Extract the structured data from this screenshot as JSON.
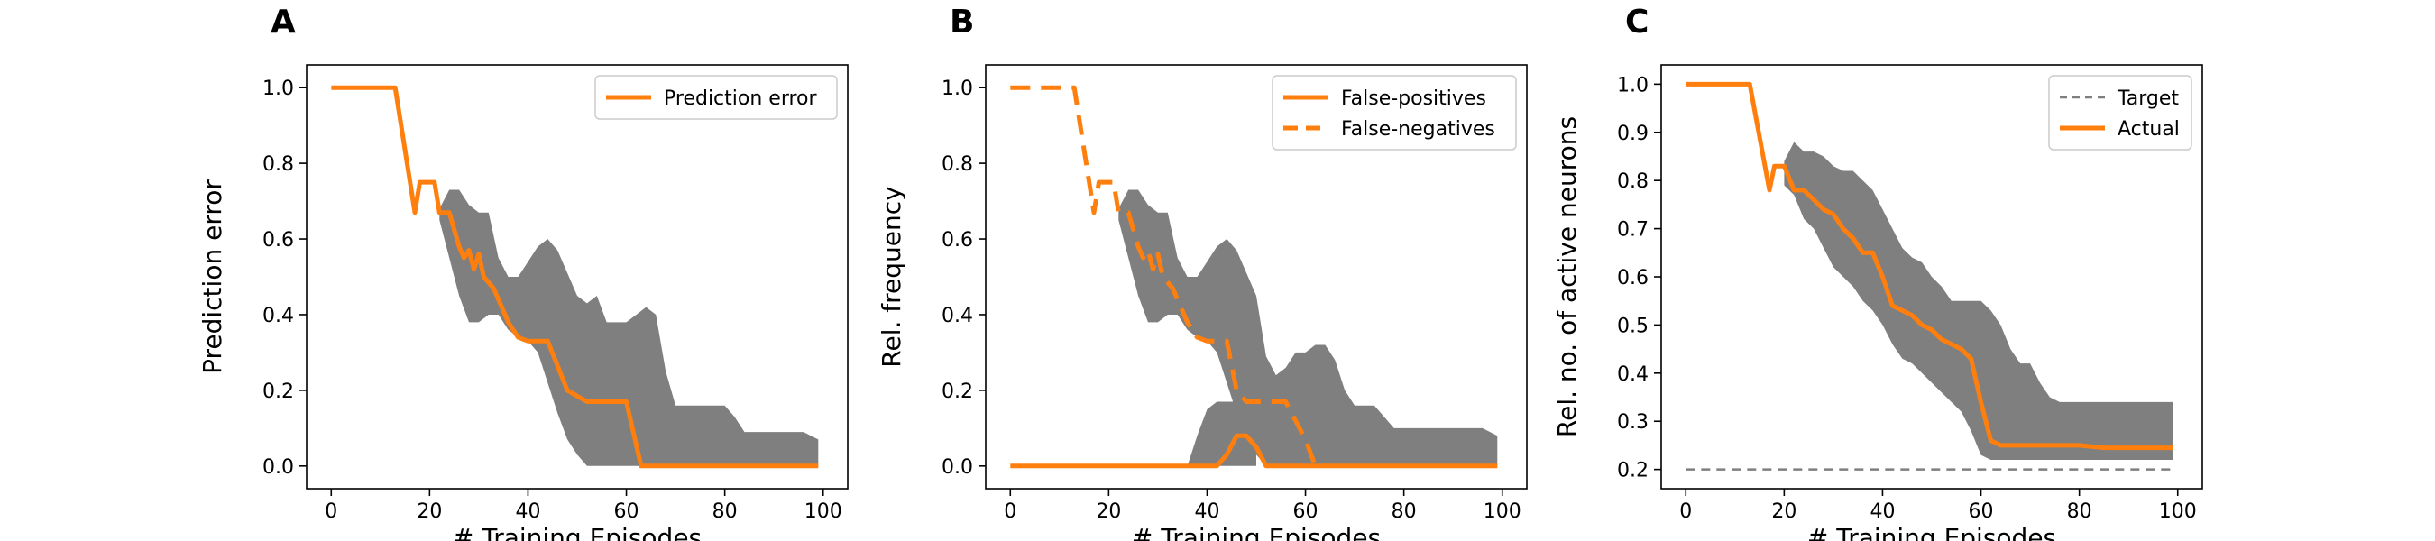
{
  "figure": {
    "panel_labels": [
      "A",
      "B",
      "C"
    ]
  },
  "chart_data": [
    {
      "type": "line",
      "panel": "A",
      "xlabel": "# Training Episodes",
      "ylabel": "Prediction error",
      "xlim": [
        -5,
        105
      ],
      "ylim": [
        -0.06,
        1.06
      ],
      "xticks": [
        0,
        20,
        40,
        60,
        80,
        100
      ],
      "xtick_labels": [
        "0",
        "20",
        "40",
        "60",
        "80",
        "100"
      ],
      "yticks": [
        0.0,
        0.2,
        0.4,
        0.6,
        0.8,
        1.0
      ],
      "ytick_labels": [
        "0.0",
        "0.2",
        "0.4",
        "0.6",
        "0.8",
        "1.0"
      ],
      "legend_position": "top-right",
      "series": [
        {
          "name": "Prediction error",
          "color": "#ff7f0e",
          "style": "solid",
          "x": [
            0,
            13,
            17,
            18,
            21,
            22,
            24,
            26,
            27,
            28,
            29,
            30,
            31,
            33,
            36,
            38,
            40,
            42,
            44,
            48,
            52,
            56,
            60,
            63,
            70,
            80,
            99
          ],
          "y": [
            1.0,
            1.0,
            0.67,
            0.75,
            0.75,
            0.67,
            0.67,
            0.58,
            0.55,
            0.57,
            0.52,
            0.56,
            0.5,
            0.47,
            0.38,
            0.34,
            0.33,
            0.33,
            0.33,
            0.2,
            0.17,
            0.17,
            0.17,
            0.0,
            0.0,
            0.0,
            0.0
          ]
        }
      ],
      "band": {
        "color": "#7f7f7f",
        "x": [
          22,
          24,
          26,
          28,
          30,
          32,
          34,
          36,
          38,
          40,
          42,
          44,
          46,
          48,
          50,
          52,
          54,
          56,
          58,
          60,
          62,
          64,
          66,
          68,
          70,
          72,
          74,
          76,
          78,
          80,
          82,
          84,
          86,
          88,
          90,
          92,
          94,
          96,
          99
        ],
        "upper": [
          0.68,
          0.73,
          0.73,
          0.69,
          0.67,
          0.67,
          0.55,
          0.5,
          0.5,
          0.54,
          0.58,
          0.6,
          0.57,
          0.51,
          0.45,
          0.43,
          0.45,
          0.38,
          0.38,
          0.38,
          0.4,
          0.42,
          0.4,
          0.25,
          0.16,
          0.16,
          0.16,
          0.16,
          0.16,
          0.16,
          0.13,
          0.09,
          0.09,
          0.09,
          0.09,
          0.09,
          0.09,
          0.09,
          0.07
        ],
        "lower": [
          0.65,
          0.55,
          0.45,
          0.38,
          0.38,
          0.4,
          0.4,
          0.36,
          0.34,
          0.33,
          0.3,
          0.22,
          0.14,
          0.07,
          0.03,
          0.0,
          0.0,
          0.0,
          0.0,
          0.0,
          0.0,
          0.0,
          0.0,
          0.0,
          0.0,
          0.0,
          0.0,
          0.0,
          0.0,
          0.0,
          0.0,
          0.0,
          0.0,
          0.0,
          0.0,
          0.0,
          0.0,
          0.0,
          0.0
        ]
      }
    },
    {
      "type": "line",
      "panel": "B",
      "xlabel": "# Training Episodes",
      "ylabel": "Rel. frequency",
      "xlim": [
        -5,
        105
      ],
      "ylim": [
        -0.06,
        1.06
      ],
      "xticks": [
        0,
        20,
        40,
        60,
        80,
        100
      ],
      "xtick_labels": [
        "0",
        "20",
        "40",
        "60",
        "80",
        "100"
      ],
      "yticks": [
        0.0,
        0.2,
        0.4,
        0.6,
        0.8,
        1.0
      ],
      "ytick_labels": [
        "0.0",
        "0.2",
        "0.4",
        "0.6",
        "0.8",
        "1.0"
      ],
      "legend_position": "top-right",
      "series": [
        {
          "name": "False-positives",
          "color": "#ff7f0e",
          "style": "solid",
          "x": [
            0,
            30,
            40,
            42,
            44,
            46,
            48,
            50,
            52,
            56,
            60,
            70,
            80,
            99
          ],
          "y": [
            0.0,
            0.0,
            0.0,
            0.0,
            0.03,
            0.08,
            0.08,
            0.05,
            0.0,
            0.0,
            0.0,
            0.0,
            0.0,
            0.0
          ]
        },
        {
          "name": "False-negatives",
          "color": "#ff7f0e",
          "style": "dashed",
          "x": [
            0,
            13,
            17,
            18,
            21,
            22,
            24,
            26,
            27,
            28,
            29,
            30,
            31,
            33,
            36,
            38,
            40,
            42,
            44,
            46,
            48,
            52,
            56,
            58,
            60,
            62
          ],
          "y": [
            1.0,
            1.0,
            0.67,
            0.75,
            0.75,
            0.67,
            0.67,
            0.58,
            0.55,
            0.57,
            0.52,
            0.56,
            0.5,
            0.47,
            0.38,
            0.34,
            0.33,
            0.33,
            0.33,
            0.2,
            0.17,
            0.17,
            0.17,
            0.12,
            0.07,
            0.0
          ]
        }
      ],
      "band": {
        "color": "#7f7f7f",
        "x": [
          22,
          24,
          26,
          28,
          30,
          32,
          34,
          36,
          38,
          40,
          42,
          44,
          46,
          48,
          50,
          52,
          54,
          56,
          58,
          60,
          62,
          64,
          66,
          68,
          70,
          72,
          74,
          76,
          78,
          80,
          82,
          84,
          86,
          88,
          90,
          92,
          94,
          96,
          99
        ],
        "upper": [
          0.68,
          0.73,
          0.73,
          0.69,
          0.67,
          0.67,
          0.55,
          0.5,
          0.5,
          0.54,
          0.58,
          0.6,
          0.57,
          0.51,
          0.45,
          0.29,
          0.24,
          0.26,
          0.3,
          0.3,
          0.32,
          0.32,
          0.28,
          0.2,
          0.16,
          0.16,
          0.16,
          0.13,
          0.1,
          0.1,
          0.1,
          0.1,
          0.1,
          0.1,
          0.1,
          0.1,
          0.1,
          0.1,
          0.08
        ],
        "lower": [
          0.65,
          0.55,
          0.45,
          0.38,
          0.38,
          0.4,
          0.4,
          0.36,
          0.34,
          0.33,
          0.3,
          0.22,
          0.14,
          0.07,
          0.03,
          0.0,
          0.0,
          0.0,
          0.0,
          0.0,
          0.0,
          0.0,
          0.0,
          0.0,
          0.0,
          0.0,
          0.0,
          0.0,
          0.0,
          0.0,
          0.0,
          0.0,
          0.0,
          0.0,
          0.0,
          0.0,
          0.0,
          0.0,
          0.0
        ]
      },
      "band2": {
        "color": "#7f7f7f",
        "x": [
          36,
          38,
          40,
          42,
          44,
          46,
          48,
          50
        ],
        "upper": [
          0.0,
          0.08,
          0.15,
          0.17,
          0.17,
          0.17,
          0.17,
          0.17
        ],
        "lower": [
          0.0,
          0.0,
          0.0,
          0.0,
          0.0,
          0.0,
          0.0,
          0.0
        ]
      }
    },
    {
      "type": "line",
      "panel": "C",
      "xlabel": "# Training Episodes",
      "ylabel": "Rel. no. of active neurons",
      "xlim": [
        -5,
        105
      ],
      "ylim": [
        0.16,
        1.04
      ],
      "xticks": [
        0,
        20,
        40,
        60,
        80,
        100
      ],
      "xtick_labels": [
        "0",
        "20",
        "40",
        "60",
        "80",
        "100"
      ],
      "yticks": [
        0.2,
        0.3,
        0.4,
        0.5,
        0.6,
        0.7,
        0.8,
        0.9,
        1.0
      ],
      "ytick_labels": [
        "0.2",
        "0.3",
        "0.4",
        "0.5",
        "0.6",
        "0.7",
        "0.8",
        "0.9",
        "1.0"
      ],
      "legend_position": "top-right",
      "series": [
        {
          "name": "Target",
          "color": "#7f7f7f",
          "style": "dashed",
          "x": [
            0,
            99
          ],
          "y": [
            0.2,
            0.2
          ]
        },
        {
          "name": "Actual",
          "color": "#ff7f0e",
          "style": "solid",
          "x": [
            0,
            13,
            17,
            18,
            20,
            22,
            24,
            26,
            28,
            30,
            32,
            34,
            36,
            38,
            40,
            42,
            44,
            46,
            48,
            50,
            52,
            54,
            56,
            58,
            60,
            62,
            64,
            66,
            70,
            75,
            80,
            85,
            90,
            95,
            99
          ],
          "y": [
            1.0,
            1.0,
            0.78,
            0.83,
            0.83,
            0.78,
            0.78,
            0.76,
            0.74,
            0.73,
            0.7,
            0.68,
            0.65,
            0.65,
            0.6,
            0.54,
            0.53,
            0.52,
            0.5,
            0.49,
            0.47,
            0.46,
            0.45,
            0.43,
            0.34,
            0.26,
            0.25,
            0.25,
            0.25,
            0.25,
            0.25,
            0.245,
            0.245,
            0.245,
            0.245
          ]
        }
      ],
      "band": {
        "color": "#7f7f7f",
        "x": [
          20,
          22,
          24,
          26,
          28,
          30,
          32,
          34,
          36,
          38,
          40,
          42,
          44,
          46,
          48,
          50,
          52,
          54,
          56,
          58,
          60,
          62,
          64,
          66,
          68,
          70,
          72,
          74,
          76,
          78,
          80,
          82,
          84,
          86,
          88,
          90,
          92,
          94,
          96,
          99
        ],
        "upper": [
          0.84,
          0.88,
          0.86,
          0.86,
          0.85,
          0.83,
          0.82,
          0.82,
          0.8,
          0.78,
          0.74,
          0.7,
          0.66,
          0.64,
          0.63,
          0.6,
          0.58,
          0.55,
          0.55,
          0.55,
          0.55,
          0.53,
          0.5,
          0.45,
          0.42,
          0.42,
          0.38,
          0.35,
          0.34,
          0.34,
          0.34,
          0.34,
          0.34,
          0.34,
          0.34,
          0.34,
          0.34,
          0.34,
          0.34,
          0.34
        ],
        "lower": [
          0.79,
          0.77,
          0.72,
          0.7,
          0.66,
          0.62,
          0.6,
          0.58,
          0.55,
          0.53,
          0.5,
          0.46,
          0.43,
          0.42,
          0.4,
          0.38,
          0.36,
          0.34,
          0.32,
          0.28,
          0.23,
          0.22,
          0.22,
          0.22,
          0.22,
          0.22,
          0.22,
          0.22,
          0.22,
          0.22,
          0.22,
          0.22,
          0.22,
          0.22,
          0.22,
          0.22,
          0.22,
          0.22,
          0.22,
          0.22
        ]
      }
    }
  ]
}
